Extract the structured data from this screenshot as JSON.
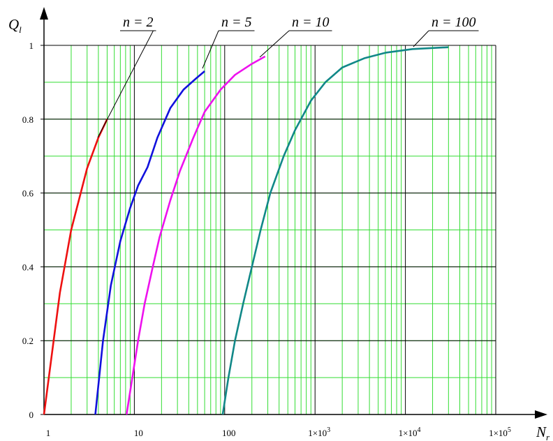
{
  "chart_data": {
    "type": "line",
    "title": "",
    "xlabel": "N",
    "xlabel_sub": "r",
    "ylabel": "Q",
    "ylabel_sub": "l",
    "xscale": "log",
    "xlim": [
      1,
      100000
    ],
    "ylim": [
      0,
      1
    ],
    "grid": true,
    "colors": {
      "major_grid": "#000000",
      "minor_grid": "#33dd33",
      "axis": "#000000"
    },
    "x_ticks": [
      {
        "value": 1,
        "label": "1"
      },
      {
        "value": 10,
        "label": "10"
      },
      {
        "value": 100,
        "label": "100"
      },
      {
        "value": 1000,
        "label": "1×10",
        "sup": "3"
      },
      {
        "value": 10000,
        "label": "1×10",
        "sup": "4"
      },
      {
        "value": 100000,
        "label": "1×10",
        "sup": "5"
      }
    ],
    "y_ticks": [
      {
        "value": 0,
        "label": "0"
      },
      {
        "value": 0.2,
        "label": "0.2"
      },
      {
        "value": 0.4,
        "label": "0.4"
      },
      {
        "value": 0.6,
        "label": "0.6"
      },
      {
        "value": 0.8,
        "label": "0.8"
      },
      {
        "value": 1,
        "label": "1"
      }
    ],
    "series": [
      {
        "name": "n = 2",
        "color": "#ee1111",
        "points": [
          [
            1,
            0
          ],
          [
            1.5,
            0.33
          ],
          [
            2,
            0.5
          ],
          [
            3,
            0.667
          ],
          [
            4,
            0.75
          ],
          [
            5,
            0.8
          ]
        ]
      },
      {
        "name": "n = 5",
        "color": "#1111dd",
        "points": [
          [
            3.7,
            0
          ],
          [
            4.5,
            0.2
          ],
          [
            5.5,
            0.35
          ],
          [
            7,
            0.47
          ],
          [
            9,
            0.56
          ],
          [
            11,
            0.62
          ],
          [
            14,
            0.67
          ],
          [
            18,
            0.75
          ],
          [
            25,
            0.83
          ],
          [
            35,
            0.88
          ],
          [
            48,
            0.91
          ],
          [
            60,
            0.93
          ]
        ]
      },
      {
        "name": "n = 10",
        "color": "#ee11ee",
        "points": [
          [
            8.2,
            0
          ],
          [
            9.5,
            0.1
          ],
          [
            11,
            0.2
          ],
          [
            13,
            0.3
          ],
          [
            16,
            0.4
          ],
          [
            19,
            0.48
          ],
          [
            25,
            0.58
          ],
          [
            32,
            0.66
          ],
          [
            45,
            0.75
          ],
          [
            60,
            0.82
          ],
          [
            90,
            0.88
          ],
          [
            130,
            0.92
          ],
          [
            200,
            0.95
          ],
          [
            280,
            0.97
          ]
        ]
      },
      {
        "name": "n = 100",
        "color": "#118888",
        "points": [
          [
            95,
            0
          ],
          [
            110,
            0.1
          ],
          [
            130,
            0.2
          ],
          [
            160,
            0.3
          ],
          [
            200,
            0.4
          ],
          [
            250,
            0.5
          ],
          [
            320,
            0.6
          ],
          [
            450,
            0.7
          ],
          [
            600,
            0.77
          ],
          [
            900,
            0.85
          ],
          [
            1300,
            0.9
          ],
          [
            2000,
            0.94
          ],
          [
            3500,
            0.965
          ],
          [
            6000,
            0.98
          ],
          [
            12000,
            0.99
          ],
          [
            30000,
            0.995
          ]
        ]
      }
    ],
    "annotations": [
      {
        "var": "n",
        "op": "=",
        "value": "2",
        "series": 0
      },
      {
        "var": "n",
        "op": "=",
        "value": "5",
        "series": 1
      },
      {
        "var": "n",
        "op": "=",
        "value": "10",
        "series": 2
      },
      {
        "var": "n",
        "op": "=",
        "value": "100",
        "series": 3
      }
    ]
  }
}
